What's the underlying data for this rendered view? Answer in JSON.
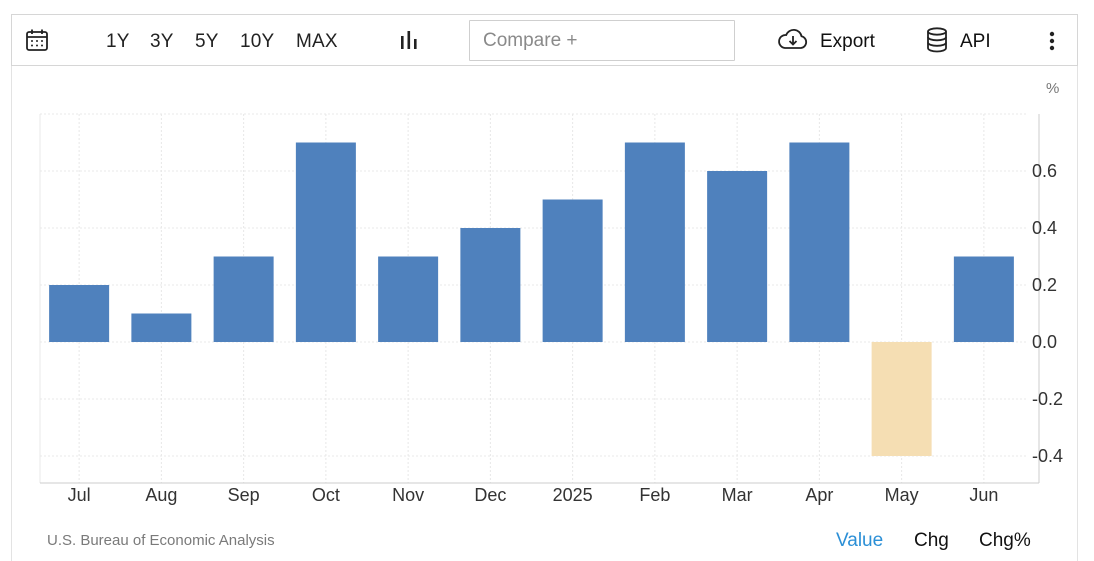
{
  "toolbar": {
    "calendar_icon": "calendar-icon",
    "ranges": [
      "1Y",
      "3Y",
      "5Y",
      "10Y",
      "MAX"
    ],
    "chart_type_icon": "bar-chart-icon",
    "compare_placeholder": "Compare +",
    "export_label": "Export",
    "export_icon": "cloud-download-icon",
    "api_label": "API",
    "api_icon": "database-icon",
    "more_icon": "vertical-dots-icon"
  },
  "unit_label": "%",
  "source": "U.S. Bureau of Economic Analysis",
  "view_tabs": [
    {
      "label": "Value",
      "active": true
    },
    {
      "label": "Chg",
      "active": false
    },
    {
      "label": "Chg%",
      "active": false
    }
  ],
  "colors": {
    "positive": "#4f81bd",
    "negative": "#f5deb3",
    "active_tab": "#2b8fd6",
    "grid": "#e8e8e8"
  },
  "chart_data": {
    "type": "bar",
    "categories": [
      "Jul",
      "Aug",
      "Sep",
      "Oct",
      "Nov",
      "Dec",
      "2025",
      "Feb",
      "Mar",
      "Apr",
      "May",
      "Jun"
    ],
    "values": [
      0.2,
      0.1,
      0.3,
      0.7,
      0.3,
      0.4,
      0.5,
      0.7,
      0.6,
      0.7,
      -0.4,
      0.3
    ],
    "yticks": [
      "0.6",
      "0.4",
      "0.2",
      "0.0",
      "-0.2",
      "-0.4"
    ],
    "ytick_values": [
      0.6,
      0.4,
      0.2,
      0.0,
      -0.2,
      -0.4
    ],
    "ylim": [
      -0.5,
      0.8
    ],
    "y_axis_position": "right",
    "grid": true,
    "title": "",
    "xlabel": "",
    "ylabel": ""
  }
}
